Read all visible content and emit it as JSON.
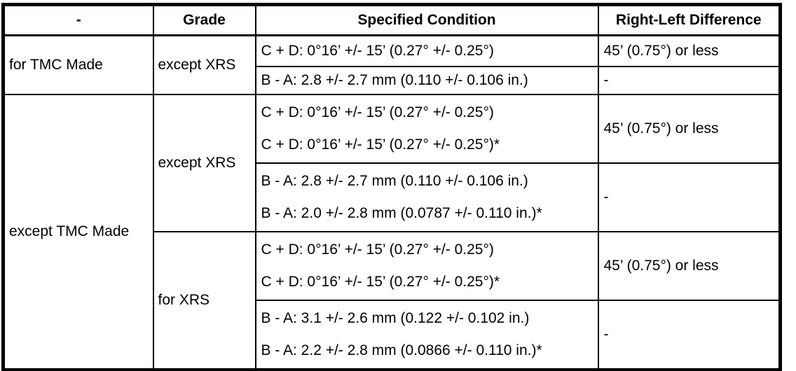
{
  "table": {
    "headers": [
      "-",
      "Grade",
      "Specified Condition",
      "Right-Left Difference"
    ],
    "sections": [
      {
        "made": "for TMC Made",
        "grades": [
          {
            "grade": "except XRS",
            "rows": [
              {
                "conditions": [
                  "C + D: 0°16’ +/- 15’ (0.27° +/- 0.25°)"
                ],
                "difference": "45’ (0.75°) or less"
              },
              {
                "conditions": [
                  "B - A: 2.8 +/- 2.7 mm (0.110 +/- 0.106 in.)"
                ],
                "difference": "-"
              }
            ]
          }
        ]
      },
      {
        "made": "except TMC Made",
        "grades": [
          {
            "grade": "except XRS",
            "rows": [
              {
                "conditions": [
                  "C + D: 0°16’ +/- 15’ (0.27° +/- 0.25°)",
                  "C + D: 0°16’ +/- 15’ (0.27° +/- 0.25°)*"
                ],
                "difference": "45’ (0.75°) or less"
              },
              {
                "conditions": [
                  "B - A: 2.8 +/- 2.7 mm (0.110 +/- 0.106 in.)",
                  "B - A: 2.0 +/- 2.8 mm (0.0787 +/- 0.110 in.)*"
                ],
                "difference": "-"
              }
            ]
          },
          {
            "grade": "for XRS",
            "rows": [
              {
                "conditions": [
                  "C + D: 0°16’ +/- 15’ (0.27° +/- 0.25°)",
                  "C + D: 0°16’ +/- 15’ (0.27° +/- 0.25°)*"
                ],
                "difference": "45’ (0.75°) or less"
              },
              {
                "conditions": [
                  "B - A: 3.1 +/- 2.6 mm (0.122 +/- 0.102 in.)",
                  "B - A: 2.2 +/- 2.8 mm (0.0866 +/- 0.110 in.)*"
                ],
                "difference": "-"
              }
            ]
          }
        ]
      }
    ]
  }
}
